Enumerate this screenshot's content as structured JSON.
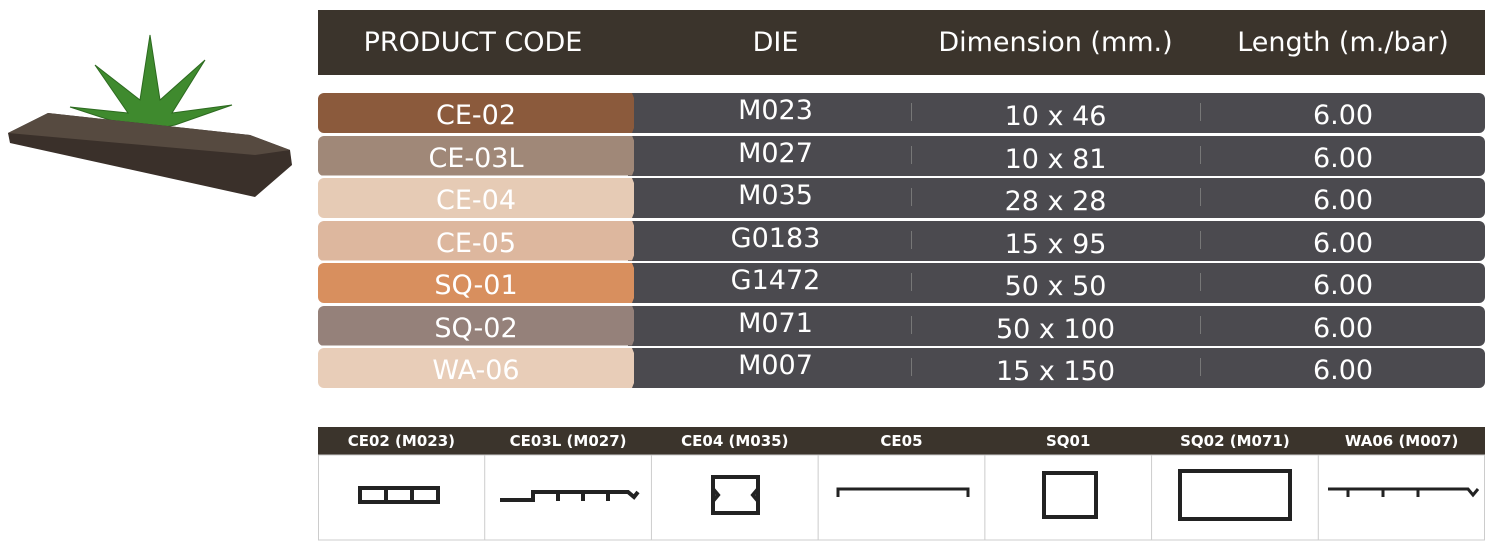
{
  "table": {
    "header": [
      "PRODUCT CODE",
      "DIE",
      "Dimension (mm.)",
      "Length (m./bar)"
    ],
    "rows": [
      [
        "CE-02",
        "M023",
        "10 x 46",
        "6.00"
      ],
      [
        "CE-03L",
        "M027",
        "10 x 81",
        "6.00"
      ],
      [
        "CE-04",
        "M035",
        "28 x 28",
        "6.00"
      ],
      [
        "CE-05",
        "G0183",
        "15 x 95",
        "6.00"
      ],
      [
        "SQ-01",
        "G1472",
        "50 x 50",
        "6.00"
      ],
      [
        "SQ-02",
        "M071",
        "50 x 100",
        "6.00"
      ],
      [
        "WA-06",
        "M007",
        "15 x 150",
        "6.00"
      ]
    ]
  },
  "profiles": [
    "CE02 (M023)",
    "CE03L (M027)",
    "CE04 (M035)",
    "CE05",
    "SQ01",
    "SQ02 (M071)",
    "WA06 (M007)"
  ]
}
